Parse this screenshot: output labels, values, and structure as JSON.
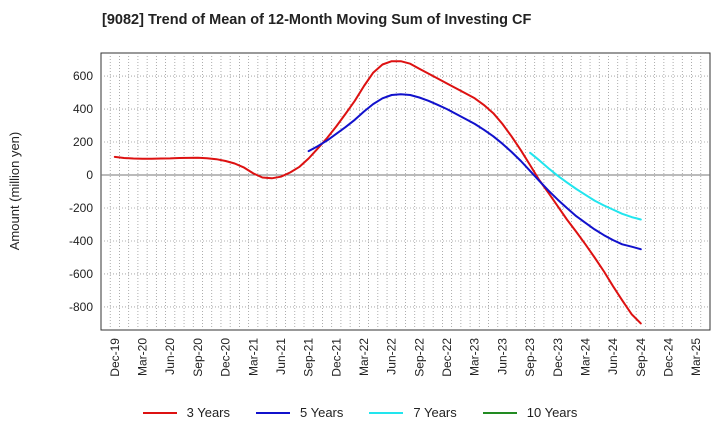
{
  "chart_data": {
    "type": "line",
    "title": "[9082]  Trend of Mean of 12-Month Moving Sum of Investing CF",
    "xlabel": "",
    "ylabel": "Amount (million yen)",
    "ylim": [
      -940,
      740
    ],
    "yticks": [
      600,
      400,
      200,
      0,
      -200,
      -400,
      -600,
      -800
    ],
    "ytick_labels": [
      "600",
      "400",
      "200",
      "0",
      "-200",
      "-400",
      "-600",
      "-800"
    ],
    "categories": [
      "Dec-19",
      "Mar-20",
      "Jun-20",
      "Sep-20",
      "Dec-20",
      "Mar-21",
      "Jun-21",
      "Sep-21",
      "Dec-21",
      "Mar-22",
      "Jun-22",
      "Sep-22",
      "Dec-22",
      "Mar-23",
      "Jun-23",
      "Sep-23",
      "Dec-23",
      "Mar-24",
      "Jun-24",
      "Sep-24",
      "Dec-24",
      "Mar-25"
    ],
    "grid": true,
    "legend_position": "bottom",
    "series": [
      {
        "name": "3 Years",
        "color": "#dd1111",
        "x": [
          0,
          0.33,
          0.67,
          1,
          1.33,
          1.67,
          2,
          2.33,
          2.67,
          3,
          3.33,
          3.67,
          4,
          4.33,
          4.67,
          5,
          5.33,
          5.67,
          6,
          6.33,
          6.67,
          7,
          7.33,
          7.67,
          8,
          8.33,
          8.67,
          9,
          9.33,
          9.67,
          10,
          10.33,
          10.67,
          11,
          11.33,
          11.67,
          12,
          12.33,
          12.67,
          13,
          13.33,
          13.67,
          14,
          14.33,
          14.67,
          15,
          15.33,
          15.67,
          16,
          16.33,
          16.67,
          17,
          17.33,
          17.67,
          18,
          18.33,
          18.67,
          19
        ],
        "values": [
          110,
          103,
          100,
          99,
          99,
          100,
          101,
          103,
          104,
          105,
          102,
          96,
          85,
          70,
          45,
          10,
          -15,
          -20,
          -10,
          15,
          50,
          100,
          160,
          225,
          295,
          370,
          450,
          540,
          620,
          670,
          690,
          690,
          675,
          645,
          615,
          585,
          555,
          525,
          495,
          465,
          425,
          375,
          310,
          235,
          150,
          60,
          -30,
          -110,
          -190,
          -270,
          -345,
          -420,
          -500,
          -585,
          -675,
          -760,
          -845,
          -900
        ]
      },
      {
        "name": "5 Years",
        "color": "#1111cc",
        "x": [
          7,
          7.33,
          7.67,
          8,
          8.33,
          8.67,
          9,
          9.33,
          9.67,
          10,
          10.33,
          10.67,
          11,
          11.33,
          11.67,
          12,
          12.33,
          12.67,
          13,
          13.33,
          13.67,
          14,
          14.33,
          14.67,
          15,
          15.33,
          15.67,
          16,
          16.33,
          16.67,
          17,
          17.33,
          17.67,
          18,
          18.33,
          18.67,
          19
        ],
        "values": [
          145,
          175,
          210,
          250,
          290,
          335,
          385,
          430,
          465,
          485,
          490,
          485,
          470,
          450,
          425,
          400,
          370,
          340,
          310,
          275,
          235,
          190,
          140,
          85,
          25,
          -35,
          -95,
          -150,
          -200,
          -250,
          -290,
          -330,
          -365,
          -395,
          -420,
          -435,
          -450
        ]
      },
      {
        "name": "7 Years",
        "color": "#22e5ee",
        "x": [
          15,
          15.33,
          15.67,
          16,
          16.33,
          16.67,
          17,
          17.33,
          17.67,
          18,
          18.33,
          18.67,
          19
        ],
        "values": [
          135,
          90,
          40,
          -5,
          -45,
          -85,
          -120,
          -155,
          -185,
          -210,
          -235,
          -255,
          -270
        ]
      },
      {
        "name": "10 Years",
        "color": "#228b22",
        "x": [],
        "values": []
      }
    ]
  }
}
